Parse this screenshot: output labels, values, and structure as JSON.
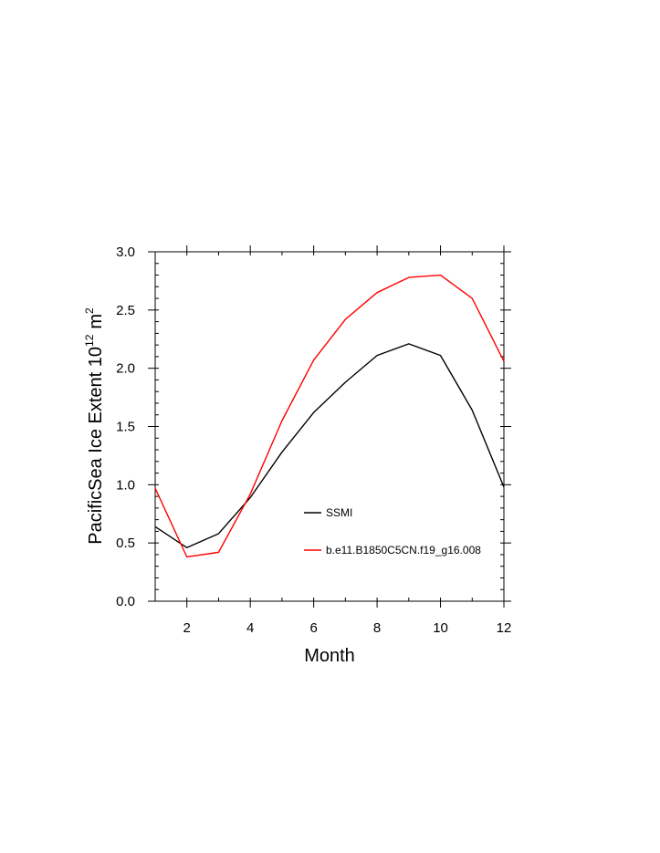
{
  "chart_data": {
    "type": "line",
    "title": "",
    "xlabel": "Month",
    "ylabel_main": "PacificSea Ice Extent 10",
    "ylabel_sup": "12",
    "ylabel_unit": "m",
    "ylabel_unit_sup": "2",
    "xlim": [
      1,
      12
    ],
    "ylim": [
      0,
      3
    ],
    "xticks": [
      2,
      4,
      6,
      8,
      10,
      12
    ],
    "xtick_labels": [
      "2",
      "4",
      "6",
      "8",
      "10",
      "12"
    ],
    "yticks": [
      0,
      0.5,
      1,
      1.5,
      2,
      2.5,
      3
    ],
    "ytick_labels": [
      "0.0",
      "0.5",
      "1.0",
      "1.5",
      "2.0",
      "2.5",
      "3.0"
    ],
    "x": [
      1,
      2,
      3,
      4,
      5,
      6,
      7,
      8,
      9,
      10,
      11,
      12
    ],
    "legend_position": "center-right",
    "series": [
      {
        "name": "SSMI",
        "color": "#000000",
        "values": [
          0.64,
          0.46,
          0.58,
          0.89,
          1.28,
          1.62,
          1.88,
          2.11,
          2.21,
          2.11,
          1.64,
          0.98
        ]
      },
      {
        "name": "b.e11.B1850C5CN.f19_g16.008",
        "color": "#ff0000",
        "values": [
          0.97,
          0.38,
          0.42,
          0.92,
          1.55,
          2.07,
          2.42,
          2.65,
          2.78,
          2.8,
          2.6,
          2.06
        ]
      }
    ]
  }
}
